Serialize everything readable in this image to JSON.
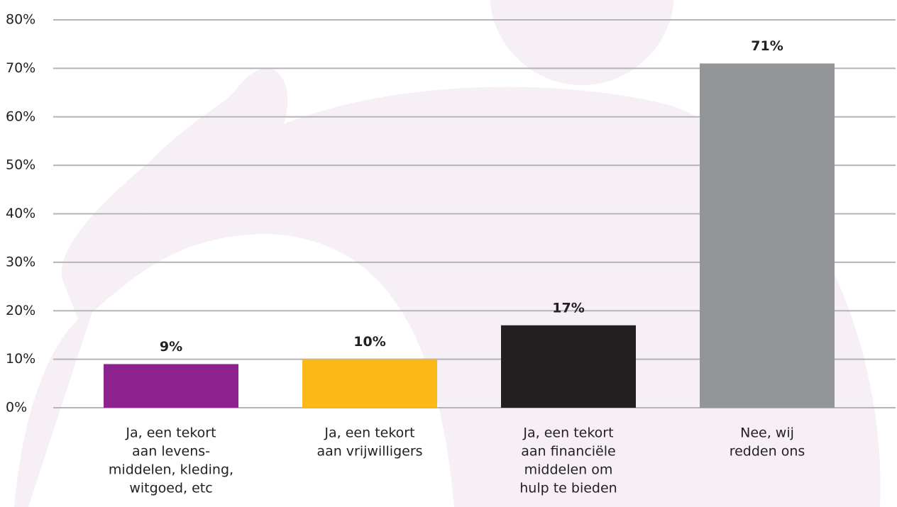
{
  "chart_data": {
    "type": "bar",
    "categories": [
      [
        "Ja, een tekort",
        "aan levens-",
        "middelen, kleding,",
        "witgoed, etc"
      ],
      [
        "Ja, een tekort",
        "aan vrijwilligers"
      ],
      [
        "Ja, een tekort",
        "aan financiële",
        "middelen om",
        "hulp te bieden"
      ],
      [
        "Nee, wij",
        "redden ons"
      ]
    ],
    "values": [
      9,
      10,
      17,
      71
    ],
    "value_labels": [
      "9%",
      "10%",
      "17%",
      "71%"
    ],
    "colors": [
      "#8e2390",
      "#fbb917",
      "#231f20",
      "#939598"
    ],
    "ylim": [
      0,
      80
    ],
    "yticks": [
      {
        "value": 0,
        "label": "0%"
      },
      {
        "value": 10,
        "label": "10%"
      },
      {
        "value": 20,
        "label": "20%"
      },
      {
        "value": 30,
        "label": "30%"
      },
      {
        "value": 40,
        "label": "40%"
      },
      {
        "value": 50,
        "label": "50%"
      },
      {
        "value": 60,
        "label": "60%"
      },
      {
        "value": 70,
        "label": "70%"
      },
      {
        "value": 80,
        "label": "80%"
      }
    ],
    "grid": true
  }
}
